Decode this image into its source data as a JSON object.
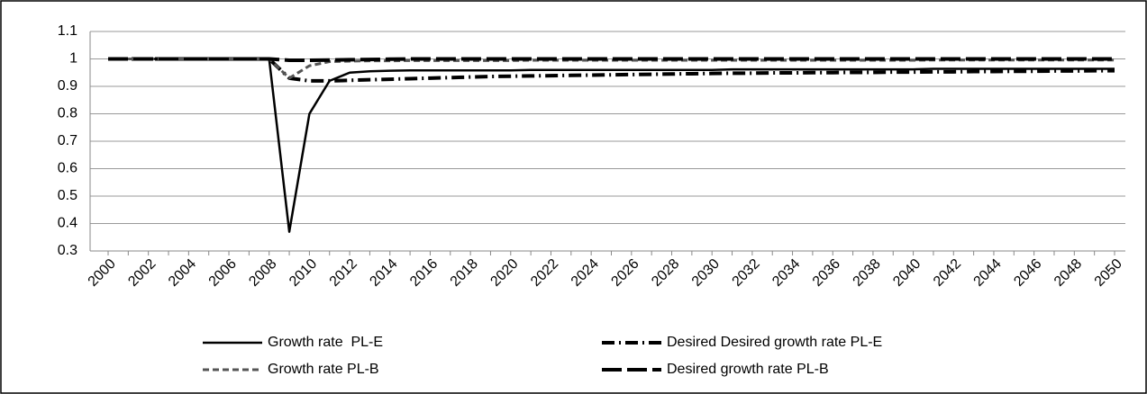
{
  "chart_data": {
    "type": "line",
    "categories": [
      "2000",
      null,
      "2002",
      null,
      "2004",
      null,
      "2006",
      null,
      "2008",
      null,
      "2010",
      null,
      "2012",
      null,
      "2014",
      null,
      "2016",
      null,
      "2018",
      null,
      "2020",
      null,
      "2022",
      null,
      "2024",
      null,
      "2026",
      null,
      "2028",
      null,
      "2030",
      null,
      "2032",
      null,
      "2034",
      null,
      "2036",
      null,
      "2038",
      null,
      "2040",
      null,
      "2042",
      null,
      "2044",
      null,
      "2046",
      null,
      "2048",
      null,
      "2050"
    ],
    "series": [
      {
        "name": "Growth rate  PL-E",
        "color": "#000000",
        "style": "solid",
        "values": [
          1,
          1,
          1,
          1,
          1,
          1,
          1,
          1,
          1,
          0.37,
          0.8,
          0.92,
          0.95,
          0.955,
          0.957,
          0.958,
          0.958,
          0.958,
          0.958,
          0.958,
          0.958,
          0.96,
          0.96,
          0.96,
          0.96,
          0.96,
          0.96,
          0.96,
          0.96,
          0.96,
          0.96,
          0.962,
          0.962,
          0.962,
          0.962,
          0.962,
          0.962,
          0.962,
          0.962,
          0.962,
          0.962,
          0.964,
          0.964,
          0.964,
          0.964,
          0.964,
          0.964,
          0.964,
          0.964,
          0.964,
          0.964
        ]
      },
      {
        "name": "Desired Desired growth rate PL-E",
        "color": "#000000",
        "style": "dashdot",
        "values": [
          1,
          1,
          1,
          1,
          1,
          1,
          1,
          1,
          1,
          0.93,
          0.92,
          0.92,
          0.922,
          0.924,
          0.926,
          0.928,
          0.93,
          0.932,
          0.934,
          0.936,
          0.937,
          0.938,
          0.939,
          0.94,
          0.941,
          0.942,
          0.943,
          0.944,
          0.945,
          0.946,
          0.947,
          0.948,
          0.948,
          0.949,
          0.949,
          0.95,
          0.95,
          0.951,
          0.951,
          0.952,
          0.952,
          0.953,
          0.953,
          0.954,
          0.954,
          0.955,
          0.955,
          0.956,
          0.956,
          0.957,
          0.957
        ]
      },
      {
        "name": "Growth rate PL-B",
        "color": "#555555",
        "style": "dashed",
        "values": [
          1,
          1,
          1,
          1,
          1,
          1,
          1,
          1,
          1,
          0.93,
          0.975,
          0.99,
          0.992,
          0.993,
          0.993,
          0.994,
          0.994,
          0.994,
          0.994,
          0.994,
          0.994,
          0.995,
          0.995,
          0.995,
          0.995,
          0.995,
          0.995,
          0.995,
          0.995,
          0.995,
          0.995,
          0.995,
          0.995,
          0.995,
          0.995,
          0.995,
          0.995,
          0.995,
          0.995,
          0.995,
          0.995,
          0.996,
          0.996,
          0.996,
          0.996,
          0.996,
          0.996,
          0.996,
          0.996,
          0.996,
          0.996
        ]
      },
      {
        "name": "Desired growth rate PL-B",
        "color": "#000000",
        "style": "longdash",
        "values": [
          1,
          1,
          1,
          1,
          1,
          1,
          1,
          1,
          1,
          0.995,
          0.995,
          0.996,
          0.997,
          0.998,
          0.999,
          1,
          1,
          1,
          1,
          1,
          1,
          1,
          1,
          1,
          1,
          1,
          1,
          1,
          1,
          1,
          1,
          1,
          1,
          1,
          1,
          1,
          1,
          1,
          1,
          1,
          1,
          1,
          1,
          1,
          1,
          1,
          1,
          1,
          1,
          1,
          1
        ]
      }
    ],
    "ylim": [
      0.3,
      1.1
    ],
    "yticks": [
      0.3,
      0.4,
      0.5,
      0.6,
      0.7,
      0.8,
      0.9,
      1,
      1.1
    ],
    "grid": true,
    "legend": "bottom"
  }
}
